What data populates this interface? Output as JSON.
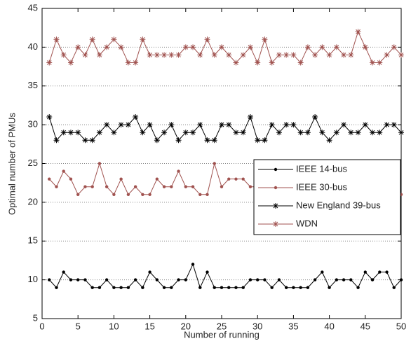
{
  "chart_data": {
    "type": "line",
    "xlabel": "Number of running",
    "ylabel": "Optimal number of PMUs",
    "x": [
      1,
      2,
      3,
      4,
      5,
      6,
      7,
      8,
      9,
      10,
      11,
      12,
      13,
      14,
      15,
      16,
      17,
      18,
      19,
      20,
      21,
      22,
      23,
      24,
      25,
      26,
      27,
      28,
      29,
      30,
      31,
      32,
      33,
      34,
      35,
      36,
      37,
      38,
      39,
      40,
      41,
      42,
      43,
      44,
      45,
      46,
      47,
      48,
      49,
      50
    ],
    "series": [
      {
        "name": "IEEE 14-bus",
        "color": "#000000",
        "marker": "dot",
        "values": [
          10,
          9,
          11,
          10,
          10,
          10,
          9,
          9,
          10,
          9,
          9,
          9,
          10,
          9,
          11,
          10,
          9,
          9,
          10,
          10,
          12,
          9,
          11,
          9,
          9,
          9,
          9,
          9,
          10,
          10,
          10,
          9,
          10,
          9,
          9,
          9,
          9,
          10,
          11,
          9,
          10,
          10,
          10,
          9,
          11,
          10,
          11,
          11,
          9,
          10
        ]
      },
      {
        "name": "IEEE 30-bus",
        "color": "#a0524f",
        "marker": "dot",
        "values": [
          23,
          22,
          24,
          23,
          21,
          22,
          22,
          25,
          22,
          21,
          23,
          21,
          22,
          21,
          21,
          23,
          22,
          22,
          24,
          22,
          22,
          21,
          21,
          25,
          22,
          23,
          23,
          23,
          22,
          22,
          23,
          21,
          22,
          23,
          22,
          22,
          21,
          23,
          24,
          22,
          22,
          21,
          24,
          21,
          23,
          21,
          23,
          22,
          23,
          21
        ]
      },
      {
        "name": "New England 39-bus",
        "color": "#000000",
        "marker": "star",
        "values": [
          31,
          28,
          29,
          29,
          29,
          28,
          28,
          29,
          30,
          29,
          30,
          30,
          31,
          29,
          30,
          28,
          29,
          30,
          28,
          29,
          29,
          30,
          28,
          28,
          30,
          30,
          29,
          29,
          31,
          28,
          28,
          30,
          29,
          30,
          30,
          29,
          29,
          31,
          29,
          28,
          29,
          30,
          29,
          29,
          30,
          29,
          29,
          30,
          30,
          29
        ]
      },
      {
        "name": "WDN",
        "color": "#a0524f",
        "marker": "star",
        "values": [
          38,
          41,
          39,
          38,
          40,
          39,
          41,
          39,
          40,
          41,
          40,
          38,
          38,
          41,
          39,
          39,
          39,
          39,
          39,
          40,
          40,
          39,
          41,
          39,
          40,
          39,
          38,
          39,
          40,
          38,
          41,
          38,
          39,
          39,
          39,
          38,
          40,
          39,
          40,
          39,
          40,
          39,
          39,
          42,
          40,
          38,
          38,
          39,
          40,
          39
        ]
      }
    ],
    "xlim": [
      0,
      50
    ],
    "xticks": [
      0,
      5,
      10,
      15,
      20,
      25,
      30,
      35,
      40,
      45,
      50
    ],
    "ylim": [
      5,
      45
    ],
    "yticks": [
      5,
      10,
      15,
      20,
      25,
      30,
      35,
      40,
      45
    ],
    "grid": true,
    "legend": "right"
  }
}
